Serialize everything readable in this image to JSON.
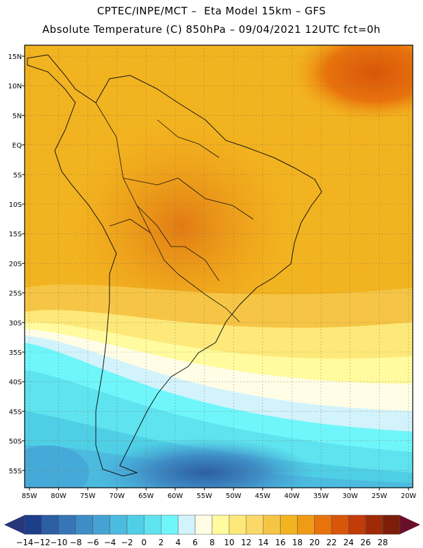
{
  "header": {
    "title": "CPTEC/INPE/MCT –  Eta Model 15km – GFS",
    "subtitle": "Absolute Temperature (C) 850hPa – 09/04/2021 12UTC fct=0h"
  },
  "axes": {
    "lat_labels": [
      "15N",
      "10N",
      "5N",
      "EQ",
      "5S",
      "10S",
      "15S",
      "20S",
      "25S",
      "30S",
      "35S",
      "40S",
      "45S",
      "50S",
      "55S"
    ],
    "lon_labels": [
      "85W",
      "80W",
      "75W",
      "70W",
      "65W",
      "60W",
      "55W",
      "50W",
      "45W",
      "40W",
      "35W",
      "30W",
      "25W",
      "20W"
    ]
  },
  "colorbar": {
    "labels": [
      "-14",
      "-12",
      "-10",
      "-8",
      "-6",
      "-4",
      "-2",
      "0",
      "2",
      "4",
      "6",
      "8",
      "10",
      "12",
      "14",
      "16",
      "18",
      "20",
      "22",
      "24",
      "26",
      "28"
    ],
    "colors": [
      "#1c3f8c",
      "#2c5ea4",
      "#3676b6",
      "#3f8dc6",
      "#45a3d4",
      "#4cbbe0",
      "#4fcfe6",
      "#5ee3ef",
      "#6ff6fb",
      "#d2f3fb",
      "#fffde6",
      "#fffb9e",
      "#fde97a",
      "#fbd968",
      "#f6c545",
      "#f2b320",
      "#ef9b16",
      "#e8730c",
      "#d8560a",
      "#c13c08",
      "#9f2a08",
      "#7c1e0a"
    ]
  }
}
